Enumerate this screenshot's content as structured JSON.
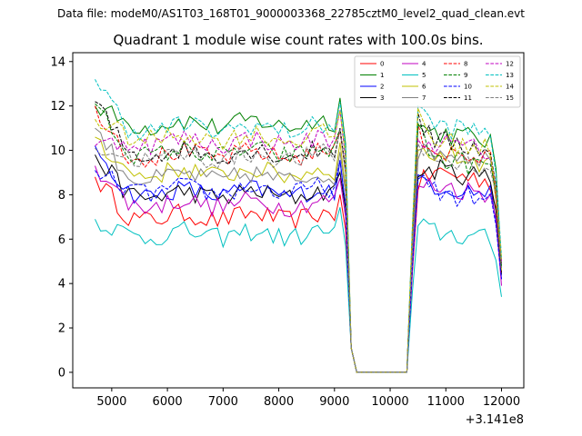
{
  "chart_data": {
    "type": "line",
    "suptitle": "Data file: modeM0/AS1T03_168T01_9000003368_22785cztM0_level2_quad_clean.evt",
    "title": "Quadrant 1 module wise count rates with 100.0s bins.",
    "xlabel": "",
    "ylabel": "",
    "x_offset_label": "+3.141e8",
    "xlim": [
      4300,
      12400
    ],
    "ylim": [
      -0.7,
      14.4
    ],
    "xticks": [
      5000,
      6000,
      7000,
      8000,
      9000,
      10000,
      11000,
      12000
    ],
    "xtick_labels": [
      "5000",
      "6000",
      "7000",
      "8000",
      "9000",
      "10000",
      "11000",
      "12000"
    ],
    "yticks": [
      0,
      2,
      4,
      6,
      8,
      10,
      12,
      14
    ],
    "ytick_labels": [
      "0",
      "2",
      "4",
      "6",
      "8",
      "10",
      "12",
      "14"
    ],
    "legend_position": "top-right",
    "gap_start": 9300,
    "gap_end": 10300,
    "x_first_segment": [
      4700,
      4800,
      4900,
      5000,
      5100,
      5200,
      5300,
      5400,
      5500,
      5600,
      5700,
      5800,
      5900,
      6000,
      6100,
      6200,
      6300,
      6400,
      6500,
      6600,
      6700,
      6800,
      6900,
      7000,
      7100,
      7200,
      7300,
      7400,
      7500,
      7600,
      7700,
      7800,
      7900,
      8000,
      8100,
      8200,
      8300,
      8400,
      8500,
      8600,
      8700,
      8800,
      8900,
      9000,
      9100,
      9200,
      9300,
      9400
    ],
    "x_gap": [
      9500,
      9600,
      9700,
      9800,
      9900,
      10000,
      10100,
      10200,
      10300
    ],
    "x_second_segment": [
      10400,
      10500,
      10600,
      10700,
      10800,
      10900,
      11000,
      11100,
      11200,
      11300,
      11400,
      11500,
      11600,
      11700,
      11800,
      11900,
      12000
    ],
    "series": [
      {
        "name": "0",
        "color": "#ff0000",
        "dash": "solid",
        "base": 7.0,
        "start": 8.8,
        "jump": 8.2,
        "second": 9.2,
        "end": 4.5
      },
      {
        "name": "1",
        "color": "#008000",
        "dash": "solid",
        "base": 11.2,
        "start": 12.0,
        "jump": 11.1,
        "second": 11.0,
        "end": 4.7
      },
      {
        "name": "2",
        "color": "#0000ff",
        "dash": "solid",
        "base": 8.1,
        "start": 10.2,
        "jump": 8.9,
        "second": 8.6,
        "end": 4.2
      },
      {
        "name": "3",
        "color": "#000000",
        "dash": "solid",
        "base": 8.0,
        "start": 9.8,
        "jump": 8.8,
        "second": 9.3,
        "end": 4.4
      },
      {
        "name": "4",
        "color": "#c000c0",
        "dash": "solid",
        "base": 7.6,
        "start": 9.3,
        "jump": 8.4,
        "second": 8.6,
        "end": 3.9
      },
      {
        "name": "5",
        "color": "#00c0c0",
        "dash": "solid",
        "base": 6.2,
        "start": 6.9,
        "jump": 6.6,
        "second": 6.5,
        "end": 3.4
      },
      {
        "name": "6",
        "color": "#c0c000",
        "dash": "solid",
        "base": 9.0,
        "start": 10.6,
        "jump": 10.0,
        "second": 10.0,
        "end": 4.6
      },
      {
        "name": "7",
        "color": "#808080",
        "dash": "solid",
        "base": 8.8,
        "start": 11.0,
        "jump": 9.6,
        "second": 10.2,
        "end": 4.8
      },
      {
        "name": "8",
        "color": "#ff0000",
        "dash": "dashed",
        "base": 9.8,
        "start": 12.0,
        "jump": 11.2,
        "second": 10.1,
        "end": 4.9
      },
      {
        "name": "9",
        "color": "#008000",
        "dash": "dashed",
        "base": 9.9,
        "start": 12.1,
        "jump": 11.2,
        "second": 9.8,
        "end": 4.8
      },
      {
        "name": "10",
        "color": "#0000ff",
        "dash": "dashed",
        "base": 8.2,
        "start": 9.1,
        "jump": 8.7,
        "second": 8.3,
        "end": 4.2
      },
      {
        "name": "11",
        "color": "#000000",
        "dash": "dashed",
        "base": 9.9,
        "start": 12.2,
        "jump": 11.7,
        "second": 10.6,
        "end": 4.9
      },
      {
        "name": "12",
        "color": "#c000c0",
        "dash": "dashed",
        "base": 10.4,
        "start": 10.2,
        "jump": 10.5,
        "second": 10.5,
        "end": 5.0
      },
      {
        "name": "13",
        "color": "#00c0c0",
        "dash": "dashed",
        "base": 11.0,
        "start": 13.2,
        "jump": 12.0,
        "second": 11.3,
        "end": 5.2
      },
      {
        "name": "14",
        "color": "#c0c000",
        "dash": "dashed",
        "base": 10.6,
        "start": 11.4,
        "jump": 11.9,
        "second": 10.6,
        "end": 5.1
      },
      {
        "name": "15",
        "color": "#808080",
        "dash": "dashed",
        "base": 9.7,
        "start": 10.1,
        "jump": 10.3,
        "second": 9.8,
        "end": 4.7
      }
    ]
  }
}
